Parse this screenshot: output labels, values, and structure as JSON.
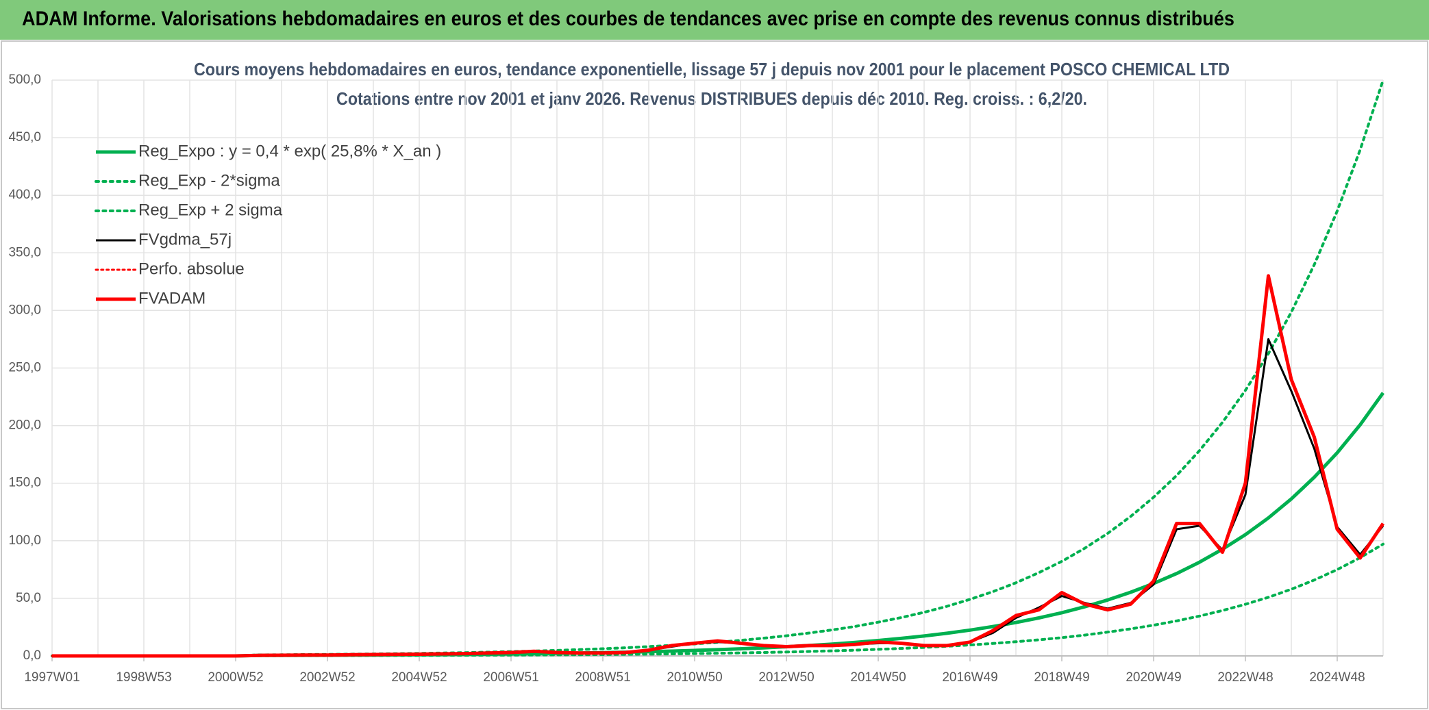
{
  "header": {
    "title": "ADAM Informe. Valorisations hebdomadaires en euros et des courbes de tendances avec prise en compte des revenus connus distribués"
  },
  "chart_data": {
    "type": "line",
    "title": "Cours moyens hebdomadaires en euros, tendance exponentielle, lissage 57 j depuis nov 2001 pour le placement POSCO CHEMICAL LTD",
    "subtitle": "Cotations entre nov 2001 et janv 2026. Revenus DISTRIBUES depuis déc 2010. Reg. croiss. : 6,2/20.",
    "categories": [
      "1997W01",
      null,
      null,
      null,
      "1998W53",
      null,
      null,
      null,
      "2000W52",
      null,
      null,
      null,
      "2002W52",
      null,
      null,
      null,
      "2004W52",
      null,
      null,
      null,
      "2006W51",
      null,
      null,
      null,
      "2008W51",
      null,
      null,
      null,
      "2010W50",
      null,
      null,
      null,
      "2012W50",
      null,
      null,
      null,
      "2014W50",
      null,
      null,
      null,
      "2016W49",
      null,
      null,
      null,
      "2018W49",
      null,
      null,
      null,
      "2020W49",
      null,
      null,
      null,
      "2022W48",
      null,
      null,
      null,
      "2024W48",
      null,
      null
    ],
    "ylim": [
      0,
      500
    ],
    "yticks": [
      {
        "value": 0,
        "label": "0,0"
      },
      {
        "value": 50,
        "label": "50,0"
      },
      {
        "value": 100,
        "label": "100,0"
      },
      {
        "value": 150,
        "label": "150,0"
      },
      {
        "value": 200,
        "label": "200,0"
      },
      {
        "value": 250,
        "label": "250,0"
      },
      {
        "value": 300,
        "label": "300,0"
      },
      {
        "value": 350,
        "label": "350,0"
      },
      {
        "value": 400,
        "label": "400,0"
      },
      {
        "value": 450,
        "label": "450,0"
      },
      {
        "value": 500,
        "label": "500,0"
      }
    ],
    "grid": true,
    "legend": "upper left",
    "series": [
      {
        "name": "Reg_Expo : y = 0,4 * exp( 25,8% *  X_an )",
        "color": "#00b050",
        "style": "solid",
        "width": 5,
        "values": [
          0,
          0,
          0,
          0,
          0,
          0,
          0,
          0,
          0,
          0.41,
          0.47,
          0.53,
          0.6,
          0.69,
          0.78,
          0.89,
          1.01,
          1.15,
          1.31,
          1.49,
          1.7,
          1.93,
          2.19,
          2.5,
          2.84,
          3.23,
          3.68,
          4.18,
          4.76,
          5.42,
          6.16,
          7.01,
          7.98,
          9.07,
          10.3,
          11.7,
          13.4,
          15.2,
          17.3,
          19.7,
          22.4,
          25.5,
          29.0,
          33.0,
          37.5,
          42.7,
          48.6,
          55.3,
          62.9,
          71.5,
          81.4,
          92.6,
          105.3,
          119.8,
          136.3,
          155.1,
          176.4,
          200.7,
          228.4
        ]
      },
      {
        "name": "Reg_Exp - 2*sigma",
        "color": "#00b050",
        "style": "dotted",
        "width": 4,
        "values": [
          0,
          0,
          0,
          0,
          0,
          0,
          0,
          0,
          0,
          0.17,
          0.2,
          0.23,
          0.26,
          0.29,
          0.33,
          0.38,
          0.43,
          0.49,
          0.56,
          0.63,
          0.72,
          0.82,
          0.93,
          1.06,
          1.21,
          1.37,
          1.56,
          1.78,
          2.02,
          2.3,
          2.62,
          2.98,
          3.39,
          3.85,
          4.38,
          4.97,
          5.7,
          6.46,
          7.35,
          8.37,
          9.52,
          10.8,
          12.3,
          14.0,
          15.9,
          18.1,
          20.7,
          23.5,
          26.7,
          30.4,
          34.6,
          39.4,
          44.8,
          50.9,
          57.9,
          65.9,
          75.0,
          85.3,
          97.1
        ]
      },
      {
        "name": "Reg_Exp + 2 sigma",
        "color": "#00b050",
        "style": "dotted",
        "width": 4,
        "values": [
          0,
          0,
          0,
          0,
          0,
          0,
          0,
          0,
          0,
          0.9,
          1.03,
          1.16,
          1.31,
          1.51,
          1.71,
          1.95,
          2.21,
          2.52,
          2.87,
          3.26,
          3.72,
          4.23,
          4.8,
          5.48,
          6.22,
          7.07,
          8.06,
          9.15,
          10.4,
          11.9,
          13.5,
          15.4,
          17.5,
          19.9,
          22.6,
          25.6,
          29.3,
          33.3,
          37.9,
          43.1,
          49.1,
          55.8,
          63.5,
          72.3,
          82.1,
          93.5,
          106.4,
          121.1,
          137.8,
          156.6,
          178.3,
          202.8,
          230.6,
          262.4,
          298.5,
          339.7,
          386.3,
          439.5,
          500
        ]
      },
      {
        "name": "FVgdma_57j",
        "color": "#000000",
        "style": "solid",
        "width": 3,
        "values": [
          0,
          0,
          0,
          0,
          0,
          0,
          0,
          0,
          0,
          0.5,
          0.6,
          0.7,
          0.8,
          1.0,
          1.2,
          1.3,
          1.5,
          1.8,
          2.0,
          2.5,
          3,
          3.5,
          3,
          2.5,
          2.5,
          3,
          5,
          8,
          11,
          12,
          11,
          9,
          8,
          9,
          9,
          10,
          11,
          11,
          9,
          9,
          12,
          20,
          33,
          42,
          52,
          46,
          41,
          46,
          62,
          110,
          113,
          92,
          140,
          275,
          230,
          180,
          112,
          88,
          113
        ]
      },
      {
        "name": "Perfo. absolue",
        "color": "#ff0000",
        "style": "dotted",
        "width": 3,
        "values": [
          0,
          0,
          0,
          0,
          0,
          0,
          0,
          0,
          0,
          0.5,
          0.6,
          0.7,
          0.8,
          1.0,
          1.2,
          1.3,
          1.5,
          1.8,
          2.0,
          2.5,
          3,
          4,
          3,
          2.5,
          2.5,
          3,
          5,
          9,
          11,
          13,
          11,
          9,
          8,
          9,
          9,
          10,
          12,
          11,
          9,
          9,
          12,
          22,
          35,
          40,
          55,
          45,
          40,
          45,
          65,
          115,
          115,
          90,
          150,
          330,
          240,
          190,
          110,
          85,
          115
        ]
      },
      {
        "name": "FVADAM",
        "color": "#ff0000",
        "style": "solid",
        "width": 5,
        "values": [
          0,
          0,
          0,
          0,
          0,
          0,
          0,
          0,
          0,
          0.5,
          0.6,
          0.7,
          0.8,
          1.0,
          1.2,
          1.3,
          1.5,
          1.8,
          2.0,
          2.5,
          3,
          4,
          3,
          2.5,
          2.5,
          3,
          5,
          9,
          11,
          13,
          11,
          9,
          8,
          9,
          9,
          10,
          12,
          11,
          9,
          9,
          12,
          22,
          35,
          40,
          55,
          45,
          40,
          45,
          65,
          115,
          115,
          90,
          150,
          330,
          240,
          190,
          110,
          85,
          115
        ]
      }
    ]
  }
}
